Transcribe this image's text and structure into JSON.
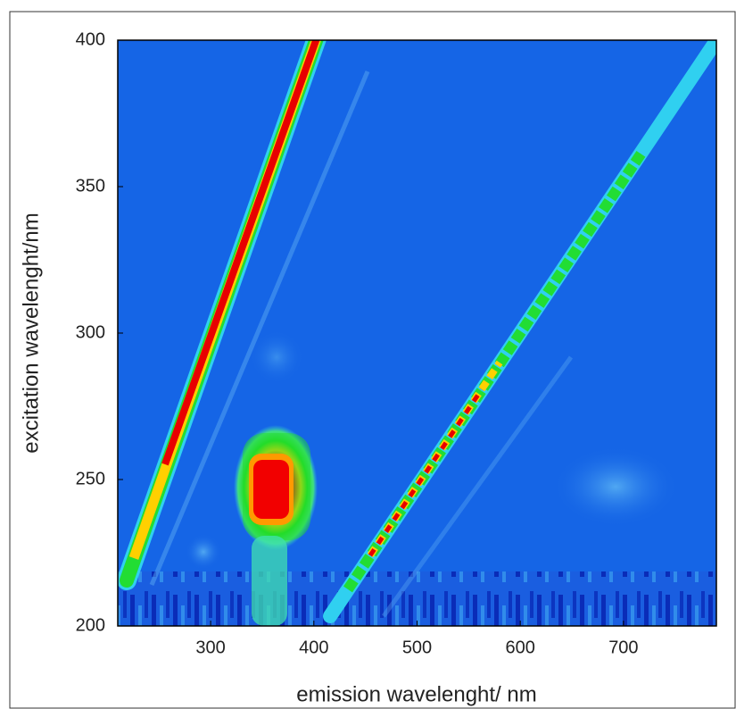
{
  "chart_data": {
    "type": "heatmap",
    "x_label": "emission wavelenght/ nm",
    "y_label": "excitation wavelenght/nm",
    "xlim": [
      210,
      790
    ],
    "xticks": [
      300,
      400,
      500,
      600,
      700
    ],
    "ylim": [
      200,
      400
    ],
    "yticks": [
      200,
      250,
      300,
      350,
      400
    ]
  }
}
